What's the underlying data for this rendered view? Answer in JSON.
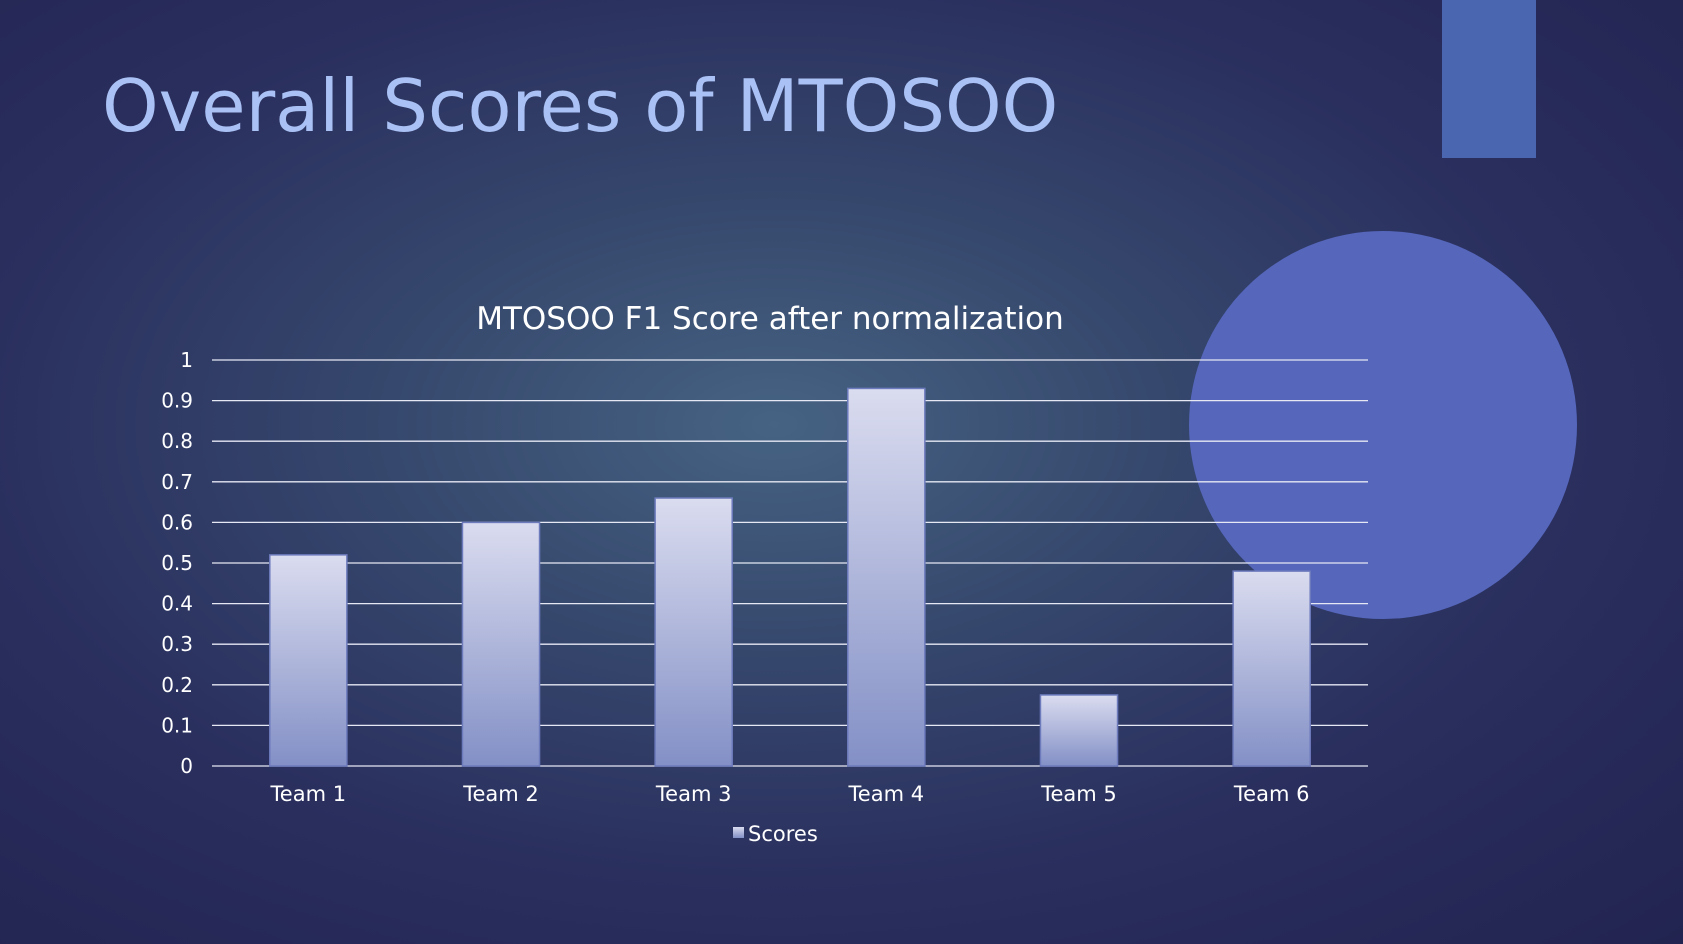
{
  "slide": {
    "title": "Overall Scores of MTOSOO"
  },
  "colors": {
    "title": "#a9c1f5",
    "accent_rect": "#4a66b0",
    "accent_circle": "#5566bb",
    "bar_top": "#dadcef",
    "bar_bottom": "#8390c6",
    "grid": "#e6e8f4",
    "text": "#ffffff"
  },
  "chart_data": {
    "type": "bar",
    "title": "MTOSOO F1 Score after normalization",
    "xlabel": "",
    "ylabel": "",
    "categories": [
      "Team 1",
      "Team 2",
      "Team 3",
      "Team 4",
      "Team 5",
      "Team 6"
    ],
    "series": [
      {
        "name": "Scores",
        "values": [
          0.52,
          0.6,
          0.66,
          0.93,
          0.175,
          0.48
        ]
      }
    ],
    "ylim": [
      0,
      1
    ],
    "yticks": [
      "0",
      "0.1",
      "0.2",
      "0.3",
      "0.4",
      "0.5",
      "0.6",
      "0.7",
      "0.8",
      "0.9",
      "1"
    ],
    "grid": true,
    "legend": "bottom"
  }
}
